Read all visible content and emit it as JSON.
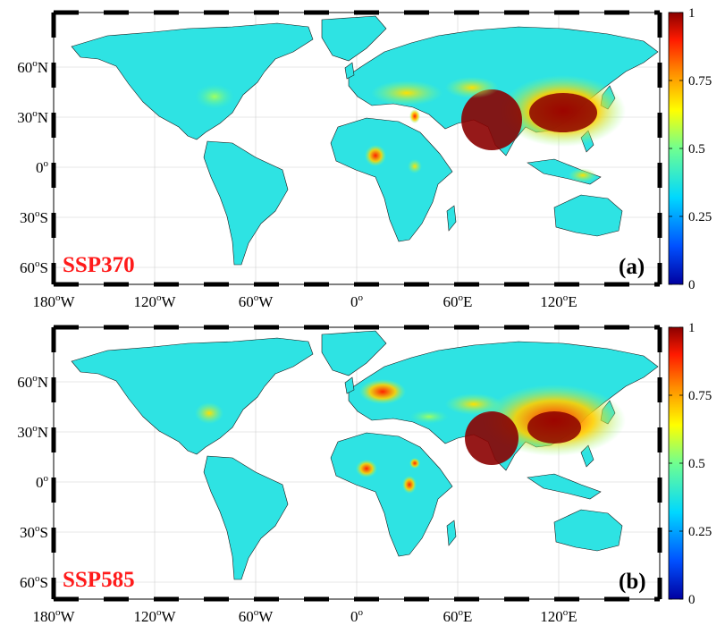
{
  "colorbar": {
    "ticks": [
      "0",
      "0.25",
      "0.5",
      "0.75",
      "1"
    ],
    "colors": [
      "#0000a0",
      "#0050ff",
      "#00d8ff",
      "#70ff90",
      "#ffff00",
      "#ff8c00",
      "#ff1a00",
      "#8b0000"
    ]
  },
  "axes": {
    "lat_ticks": [
      "60",
      "30",
      "0",
      "30",
      "60"
    ],
    "lat_suffix": [
      "N",
      "N",
      "",
      "S",
      "S"
    ],
    "lon_ticks": [
      "180",
      "120",
      "60",
      "0",
      "60",
      "120"
    ],
    "lon_suffix": [
      "W",
      "W",
      "W",
      "",
      "E",
      "E"
    ],
    "degree": "o"
  },
  "panels": [
    {
      "scenario": "SSP370",
      "label": "(a)"
    },
    {
      "scenario": "SSP585",
      "label": "(b)"
    }
  ],
  "map_colors": {
    "land": "#2ee3e3",
    "ocean": "#ffffff",
    "frame": "#000000",
    "grid": "#cccccc"
  }
}
